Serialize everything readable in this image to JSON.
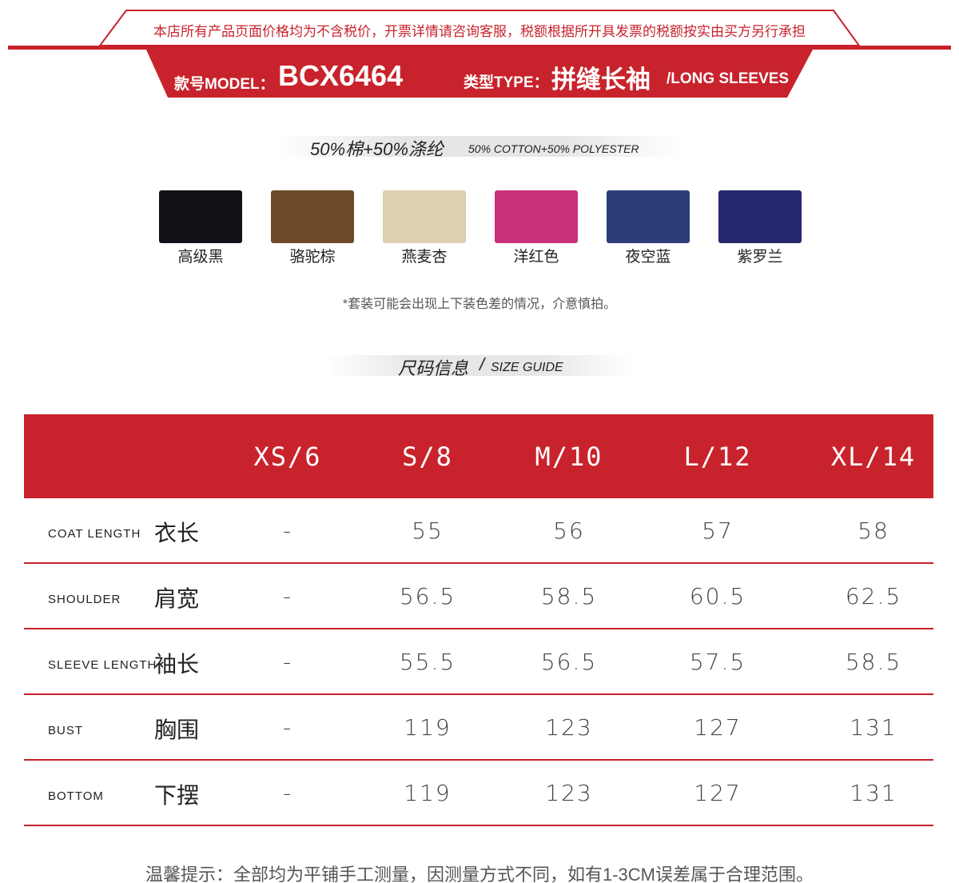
{
  "header": {
    "notice": "本店所有产品页面价格均为不含税价，开票详情请咨询客服，税额根据所开具发票的税额按实由买方另行承担",
    "model_label": "款号MODEL：",
    "model_value": "BCX6464",
    "type_label": "类型TYPE：",
    "type_value": "拼缝长袖",
    "type_value_en": "/LONG SLEEVES",
    "brand_color": "#c8232c"
  },
  "fabric": {
    "title": "50%棉+50%涤纶",
    "subtitle": "50% COTTON+50% POLYESTER"
  },
  "colors": [
    {
      "name": "高级黑",
      "hex": "#101218"
    },
    {
      "name": "骆驼棕",
      "hex": "#6e4a2a"
    },
    {
      "name": "燕麦杏",
      "hex": "#dccfb2"
    },
    {
      "name": "洋红色",
      "hex": "#c8307a"
    },
    {
      "name": "夜空蓝",
      "hex": "#2c3e78"
    },
    {
      "name": "紫罗兰",
      "hex": "#25276f"
    }
  ],
  "color_note": "*套装可能会出现上下装色差的情况，介意慎拍。",
  "size_guide": {
    "title": "尺码信息",
    "subtitle": "SIZE GUIDE",
    "sizes": [
      "XS/6",
      "S/8",
      "M/10",
      "L/12",
      "XL/14"
    ],
    "rows": [
      {
        "en": "COAT LENGTH",
        "zh": "衣长",
        "values": [
          "-",
          "55",
          "56",
          "57",
          "58"
        ]
      },
      {
        "en": "SHOULDER",
        "zh": "肩宽",
        "values": [
          "-",
          "56.5",
          "58.5",
          "60.5",
          "62.5"
        ]
      },
      {
        "en": "SLEEVE LENGTH",
        "zh": "袖长",
        "values": [
          "-",
          "55.5",
          "56.5",
          "57.5",
          "58.5"
        ]
      },
      {
        "en": "BUST",
        "zh": "胸围",
        "values": [
          "-",
          "119",
          "123",
          "127",
          "131"
        ]
      },
      {
        "en": "BOTTOM",
        "zh": "下摆",
        "values": [
          "-",
          "119",
          "123",
          "127",
          "131"
        ]
      }
    ]
  },
  "footer_note": "温馨提示：全部均为平铺手工测量，因测量方式不同，如有1-3CM误差属于合理范围。"
}
